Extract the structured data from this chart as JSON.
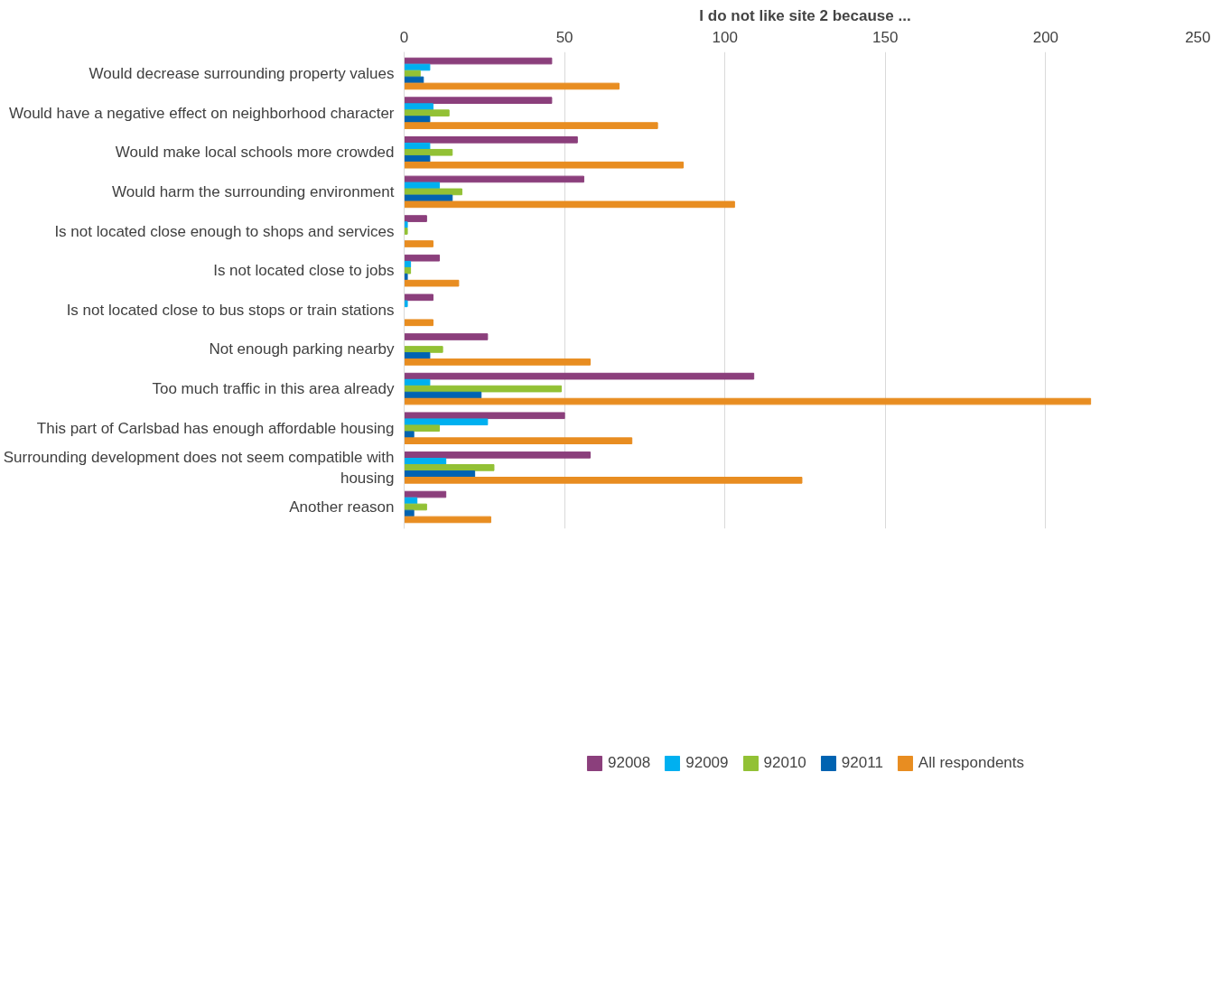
{
  "chart_data": {
    "type": "bar",
    "orientation": "horizontal",
    "title": "I do not like site 2 because ...",
    "categories": [
      "Would decrease surrounding property values",
      "Would have a negative effect on neighborhood character",
      "Would make local schools more crowded",
      "Would harm the surrounding environment",
      "Is not located close enough to shops and services",
      "Is not located close to jobs",
      "Is not located close to bus stops or train stations",
      "Not enough parking nearby",
      "Too much traffic in this area already",
      "This part of Carlsbad has enough affordable housing",
      "Surrounding development does not seem compatible with housing",
      "Another reason"
    ],
    "series": [
      {
        "name": "92008",
        "color": "#8b3f7c",
        "values": [
          46,
          46,
          54,
          56,
          7,
          11,
          9,
          26,
          109,
          50,
          58,
          13
        ]
      },
      {
        "name": "92009",
        "color": "#00b0f0",
        "values": [
          8,
          9,
          8,
          11,
          1,
          2,
          1,
          0,
          8,
          26,
          13,
          4
        ]
      },
      {
        "name": "92010",
        "color": "#92c135",
        "values": [
          5,
          14,
          15,
          18,
          1,
          2,
          0,
          12,
          49,
          11,
          28,
          7
        ]
      },
      {
        "name": "92011",
        "color": "#0063b1",
        "values": [
          6,
          8,
          8,
          15,
          0,
          1,
          0,
          8,
          24,
          3,
          22,
          3
        ]
      },
      {
        "name": "All respondents",
        "color": "#e88d21",
        "values": [
          67,
          79,
          87,
          103,
          9,
          17,
          9,
          58,
          214,
          71,
          124,
          27
        ]
      }
    ],
    "xlim": [
      0,
      250
    ],
    "xticks": [
      0,
      50,
      100,
      150,
      200,
      250
    ],
    "grid": "x",
    "legend": "bottom"
  }
}
